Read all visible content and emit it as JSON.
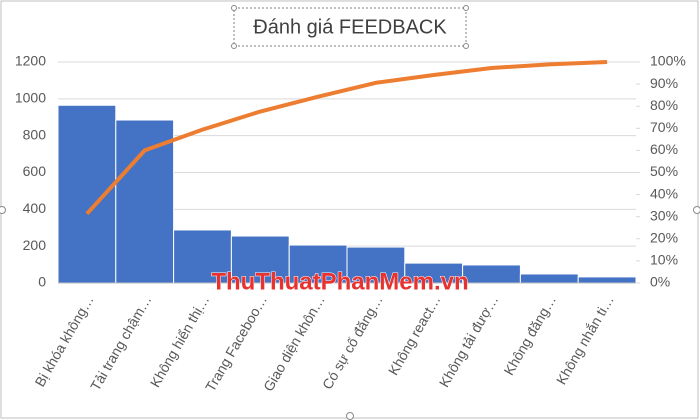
{
  "chart_data": {
    "type": "pareto",
    "title": "Đánh giá FEEDBACK",
    "categories": [
      "Bị khóa không…",
      "Tải trang chậm…",
      "Không hiển thị…",
      "Trang Faceboo…",
      "Giao diện khôn…",
      "Có sự cố đăng…",
      "Không react…",
      "Không tải đượ…",
      "Không đăng…",
      "Không nhắn ti…"
    ],
    "values": [
      965,
      885,
      288,
      255,
      206,
      195,
      108,
      98,
      49,
      33
    ],
    "color": "#4472c4",
    "line_values": [
      31.3,
      60.0,
      69.4,
      77.6,
      84.3,
      90.6,
      94.1,
      97.3,
      98.9,
      100
    ],
    "line_color": "#ed7d31",
    "ylim": [
      0,
      1200
    ],
    "yticks": [
      0,
      200,
      400,
      600,
      800,
      1000,
      1200
    ],
    "y2lim": [
      0,
      100
    ],
    "y2ticks": [
      {
        "value": 0,
        "label": "0%"
      },
      {
        "value": 10,
        "label": "10%"
      },
      {
        "value": 20,
        "label": "20%"
      },
      {
        "value": 30,
        "label": "30%"
      },
      {
        "value": 40,
        "label": "40%"
      },
      {
        "value": 50,
        "label": "50%"
      },
      {
        "value": 60,
        "label": "60%"
      },
      {
        "value": 70,
        "label": "70%"
      },
      {
        "value": 80,
        "label": "80%"
      },
      {
        "value": 90,
        "label": "90%"
      },
      {
        "value": 100,
        "label": "100%"
      }
    ],
    "grid": true,
    "watermark": "ThuThuatPhanMem.vn"
  }
}
